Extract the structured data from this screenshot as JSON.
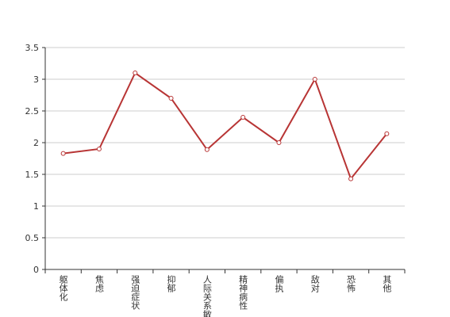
{
  "chart_data": {
    "type": "line",
    "categories": [
      "躯体化",
      "焦虑",
      "强迫症状",
      "抑郁",
      "人际关系敏感",
      "精神病性",
      "偏执",
      "敌对",
      "恐怖",
      "其他"
    ],
    "series": [
      {
        "name": null,
        "color": "#b83535",
        "values": [
          1.83,
          1.9,
          3.1,
          2.7,
          1.89,
          2.4,
          2.0,
          3.0,
          1.43,
          2.14
        ]
      }
    ],
    "ylim": [
      0,
      3.5
    ],
    "yticks": [
      0,
      0.5,
      1,
      1.5,
      2,
      2.5,
      3,
      3.5
    ],
    "grid": true
  }
}
